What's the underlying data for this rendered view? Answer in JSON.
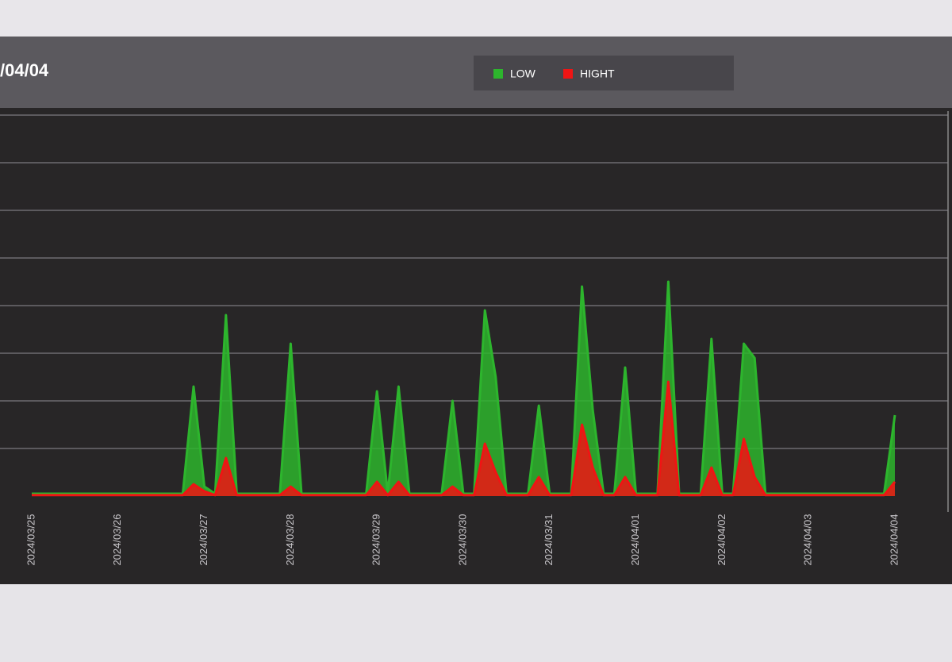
{
  "chart_data": {
    "type": "area",
    "title": "/04/04",
    "categories": [
      "2024/03/25",
      null,
      null,
      null,
      null,
      null,
      null,
      null,
      "2024/03/26",
      null,
      null,
      null,
      null,
      null,
      null,
      null,
      "2024/03/27",
      null,
      null,
      null,
      null,
      null,
      null,
      null,
      "2024/03/28",
      null,
      null,
      null,
      null,
      null,
      null,
      null,
      "2024/03/29",
      null,
      null,
      null,
      null,
      null,
      null,
      null,
      "2024/03/30",
      null,
      null,
      null,
      null,
      null,
      null,
      null,
      "2024/03/31",
      null,
      null,
      null,
      null,
      null,
      null,
      null,
      "2024/04/01",
      null,
      null,
      null,
      null,
      null,
      null,
      null,
      "2024/04/02",
      null,
      null,
      null,
      null,
      null,
      null,
      null,
      "2024/04/03",
      null,
      null,
      null,
      null,
      null,
      null,
      null,
      "2024/04/04"
    ],
    "series": [
      {
        "name": "LOW",
        "color": "#2db52d",
        "values": [
          0.05,
          0.05,
          0.05,
          0.05,
          0.05,
          0.05,
          0.05,
          0.05,
          0.05,
          0.05,
          0.05,
          0.05,
          0.05,
          0.05,
          0.05,
          2.3,
          0.2,
          0.05,
          3.8,
          0.05,
          0.05,
          0.05,
          0.05,
          0.05,
          3.2,
          0.05,
          0.05,
          0.05,
          0.05,
          0.05,
          0.05,
          0.05,
          2.2,
          0.05,
          2.3,
          0.05,
          0.05,
          0.05,
          0.05,
          2.0,
          0.05,
          0.05,
          3.9,
          2.5,
          0.05,
          0.05,
          0.05,
          1.9,
          0.05,
          0.05,
          0.05,
          4.4,
          1.8,
          0.05,
          0.05,
          2.7,
          0.05,
          0.05,
          0.05,
          4.5,
          0.05,
          0.05,
          0.05,
          3.3,
          0.05,
          0.05,
          3.2,
          2.9,
          0.05,
          0.05,
          0.05,
          0.05,
          0.05,
          0.05,
          0.05,
          0.05,
          0.05,
          0.05,
          0.05,
          0.05,
          1.7
        ]
      },
      {
        "name": "HIGHT",
        "color": "#f01414",
        "values": [
          0.02,
          0.02,
          0.02,
          0.02,
          0.02,
          0.02,
          0.02,
          0.02,
          0.02,
          0.02,
          0.02,
          0.02,
          0.02,
          0.02,
          0.02,
          0.25,
          0.1,
          0.02,
          0.8,
          0.02,
          0.02,
          0.02,
          0.02,
          0.02,
          0.2,
          0.02,
          0.02,
          0.02,
          0.02,
          0.02,
          0.02,
          0.02,
          0.3,
          0.02,
          0.3,
          0.02,
          0.02,
          0.02,
          0.02,
          0.2,
          0.02,
          0.02,
          1.1,
          0.5,
          0.02,
          0.02,
          0.02,
          0.4,
          0.02,
          0.02,
          0.02,
          1.5,
          0.6,
          0.02,
          0.02,
          0.4,
          0.02,
          0.02,
          0.02,
          2.4,
          0.02,
          0.02,
          0.02,
          0.6,
          0.02,
          0.02,
          1.2,
          0.4,
          0.02,
          0.02,
          0.02,
          0.02,
          0.02,
          0.02,
          0.02,
          0.02,
          0.02,
          0.02,
          0.02,
          0.02,
          0.3
        ]
      }
    ],
    "ylim": [
      0,
      8
    ],
    "yticks": [
      1,
      2,
      3,
      4,
      5,
      6,
      7,
      8
    ],
    "grid": true
  }
}
